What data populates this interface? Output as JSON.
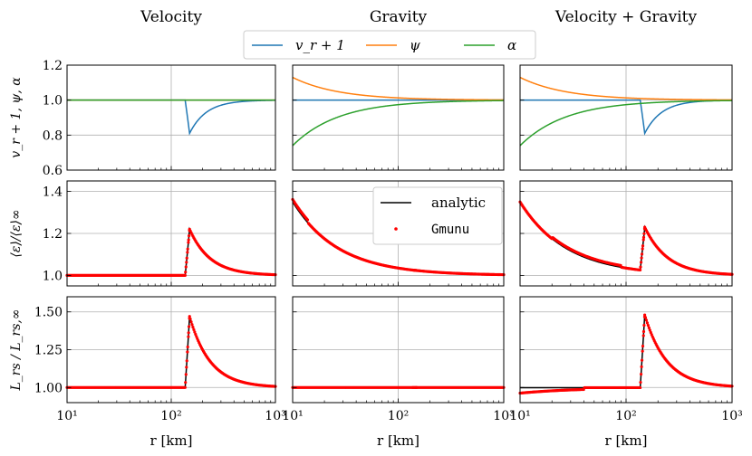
{
  "chart_data": {
    "type": "line",
    "layout": {
      "rows": 3,
      "cols": 3,
      "xscale": "log",
      "xlim": [
        10,
        1000
      ]
    },
    "column_titles": [
      "Velocity",
      "Gravity",
      "Velocity + Gravity"
    ],
    "row_ylabels": [
      "v_r + 1, ψ, α",
      "⟨ε⟩/⟨ε⟩∞",
      "L_rs / L_rs,∞"
    ],
    "row_ylims": [
      [
        0.6,
        1.2
      ],
      [
        0.95,
        1.45
      ],
      [
        0.9,
        1.6
      ]
    ],
    "row_yticks": [
      [
        "0.6",
        "0.8",
        "1.0",
        "1.2"
      ],
      [
        "1.0",
        "1.2",
        "1.4"
      ],
      [
        "1.00",
        "1.25",
        "1.50"
      ]
    ],
    "xlabel": "r [km]",
    "xtick_labels": [
      "10¹",
      "10²",
      "10³"
    ],
    "legend_top": {
      "placement": "top-center",
      "entries": [
        {
          "label": "v_r + 1",
          "color": "#1f77b4"
        },
        {
          "label": "ψ",
          "color": "#ff7f0e"
        },
        {
          "label": "α",
          "color": "#2ca02c"
        }
      ]
    },
    "legend_inner": {
      "placement": "upper-right of middle panel",
      "entries": [
        {
          "label": "analytic",
          "color": "#000000",
          "style": "line"
        },
        {
          "label": "Gmunu",
          "color": "#ff0000",
          "style": "marker"
        }
      ]
    },
    "shock_radius_km": 150,
    "series_samples": {
      "r": [
        10,
        50,
        100,
        140,
        150,
        200,
        300,
        500,
        1000
      ],
      "vel_vr_plus_1": [
        1.0,
        1.0,
        1.0,
        1.0,
        0.81,
        0.91,
        0.96,
        0.985,
        0.997
      ],
      "grav_psi": [
        1.13,
        1.06,
        1.035,
        1.025,
        1.023,
        1.017,
        1.012,
        1.007,
        1.003
      ],
      "grav_alpha": [
        0.74,
        0.88,
        0.93,
        0.95,
        0.952,
        0.965,
        0.977,
        0.986,
        0.993
      ],
      "eps_velocity": [
        1.0,
        1.0,
        1.0,
        1.0,
        1.22,
        1.12,
        1.05,
        1.02,
        1.005
      ],
      "eps_gravity": [
        1.35,
        1.09,
        1.05,
        1.035,
        1.032,
        1.025,
        1.017,
        1.01,
        1.005
      ],
      "lum_velocity": [
        1.0,
        1.0,
        1.0,
        1.0,
        1.47,
        1.22,
        1.09,
        1.04,
        1.01
      ]
    }
  }
}
